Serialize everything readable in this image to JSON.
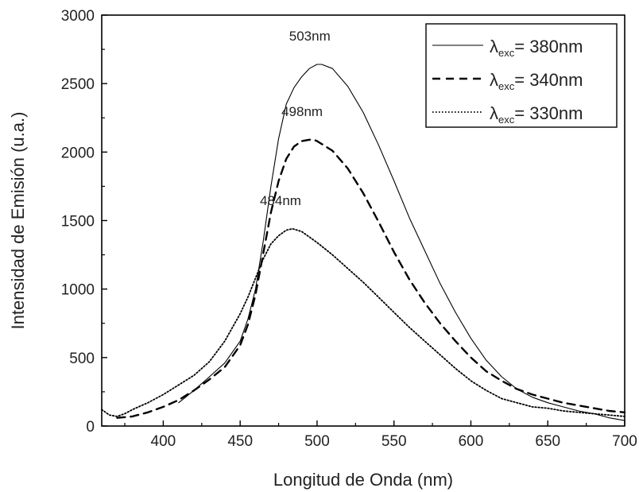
{
  "chart_data": {
    "type": "line",
    "xlabel": "Longitud de Onda (nm)",
    "ylabel": "Intensidad de Emisión (u.a.)",
    "xlim": [
      360,
      700
    ],
    "ylim": [
      0,
      3000
    ],
    "xticks": [
      400,
      450,
      500,
      550,
      600,
      650,
      700
    ],
    "yticks": [
      0,
      500,
      1000,
      1500,
      2000,
      2500,
      3000
    ],
    "grid": false,
    "legend_position": "top-right",
    "series": [
      {
        "name": "λexc= 380nm",
        "legend_symbol": "λ",
        "legend_sub": "exc",
        "legend_value": "= 380nm",
        "style": "solid",
        "color": "#000000",
        "x": [
          410,
          420,
          430,
          440,
          450,
          455,
          460,
          465,
          470,
          475,
          480,
          485,
          490,
          495,
          500,
          503,
          510,
          520,
          530,
          540,
          550,
          560,
          570,
          580,
          590,
          600,
          610,
          620,
          630,
          640,
          650,
          660,
          670,
          680,
          690,
          700
        ],
        "y": [
          170,
          260,
          360,
          460,
          620,
          780,
          1000,
          1350,
          1750,
          2100,
          2350,
          2470,
          2550,
          2610,
          2640,
          2640,
          2610,
          2480,
          2290,
          2050,
          1790,
          1520,
          1280,
          1040,
          830,
          640,
          480,
          360,
          270,
          210,
          170,
          140,
          110,
          90,
          60,
          40
        ]
      },
      {
        "name": "λexc= 340nm",
        "legend_symbol": "λ",
        "legend_sub": "exc",
        "legend_value": "= 340nm",
        "style": "dashed",
        "color": "#000000",
        "x": [
          370,
          380,
          390,
          400,
          410,
          420,
          430,
          440,
          450,
          455,
          460,
          465,
          470,
          475,
          480,
          485,
          490,
          495,
          498,
          500,
          510,
          520,
          530,
          540,
          550,
          560,
          570,
          580,
          590,
          600,
          610,
          620,
          630,
          640,
          650,
          660,
          670,
          680,
          690,
          700
        ],
        "y": [
          60,
          70,
          100,
          140,
          190,
          260,
          340,
          430,
          590,
          740,
          960,
          1260,
          1560,
          1790,
          1950,
          2040,
          2080,
          2090,
          2090,
          2080,
          2010,
          1880,
          1700,
          1490,
          1270,
          1070,
          900,
          750,
          620,
          500,
          400,
          330,
          270,
          230,
          200,
          170,
          150,
          130,
          110,
          100
        ]
      },
      {
        "name": "λexc= 330nm",
        "legend_symbol": "λ",
        "legend_sub": "exc",
        "legend_value": "= 330nm",
        "style": "dotted",
        "color": "#000000",
        "x": [
          360,
          365,
          370,
          375,
          380,
          390,
          400,
          410,
          420,
          430,
          440,
          450,
          455,
          460,
          465,
          470,
          475,
          480,
          484,
          490,
          500,
          510,
          520,
          530,
          540,
          550,
          560,
          570,
          580,
          590,
          600,
          610,
          620,
          630,
          640,
          650,
          660,
          670,
          680,
          690,
          700
        ],
        "y": [
          120,
          80,
          70,
          90,
          120,
          170,
          230,
          300,
          370,
          470,
          620,
          820,
          940,
          1080,
          1220,
          1330,
          1390,
          1430,
          1440,
          1420,
          1340,
          1250,
          1150,
          1050,
          940,
          830,
          720,
          620,
          520,
          420,
          330,
          260,
          200,
          170,
          140,
          130,
          110,
          100,
          90,
          80,
          70
        ]
      }
    ],
    "annotations": [
      {
        "text": "503nm",
        "x": 503,
        "y": 2640
      },
      {
        "text": "498nm",
        "x": 498,
        "y": 2090
      },
      {
        "text": "484nm",
        "x": 484,
        "y": 1440
      }
    ]
  }
}
